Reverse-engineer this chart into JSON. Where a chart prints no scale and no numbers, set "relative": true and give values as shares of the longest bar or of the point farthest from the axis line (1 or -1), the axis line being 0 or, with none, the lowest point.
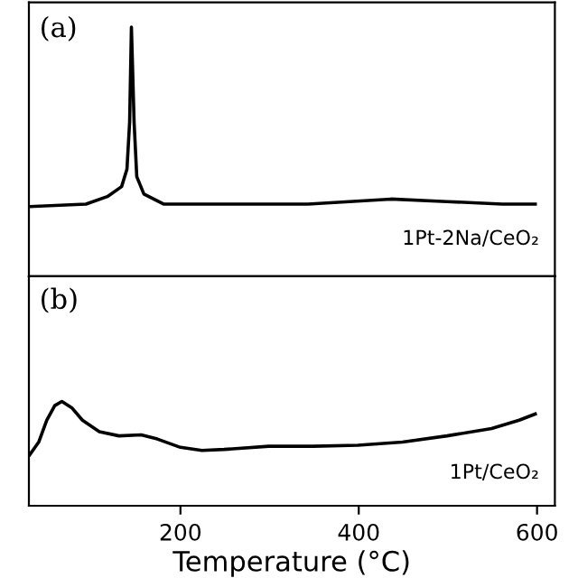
{
  "chart_data": [
    {
      "type": "line",
      "relative": true,
      "tick_labels": false,
      "xlim": [
        30,
        620
      ],
      "annotations": [
        "(a)"
      ],
      "legend": false,
      "grid": false,
      "series": [
        {
          "name": "1Pt-2Na/CeO₂",
          "color": "#000000",
          "x": [
            31,
            94,
            118,
            134,
            140,
            143,
            145,
            148,
            151,
            159,
            181,
            249,
            343,
            436,
            499,
            561,
            598
          ],
          "values": [
            0.28,
            0.29,
            0.32,
            0.36,
            0.43,
            0.62,
            1.0,
            0.62,
            0.4,
            0.33,
            0.29,
            0.29,
            0.29,
            0.31,
            0.3,
            0.29,
            0.29
          ]
        }
      ]
    },
    {
      "type": "line",
      "relative": true,
      "tick_labels": "x",
      "xlim": [
        30,
        620
      ],
      "xticks": [
        200,
        400,
        600
      ],
      "xlabel": "Temperature (°C)",
      "annotations": [
        "(b)"
      ],
      "legend": false,
      "grid": false,
      "series": [
        {
          "name": "1Pt/CeO₂",
          "color": "#000000",
          "x": [
            31,
            41,
            50,
            59,
            67,
            78,
            90,
            109,
            131,
            156,
            174,
            200,
            224,
            249,
            299,
            349,
            399,
            449,
            499,
            549,
            580,
            598
          ],
          "values": [
            0.49,
            0.61,
            0.82,
            0.96,
            1.0,
            0.94,
            0.82,
            0.71,
            0.67,
            0.68,
            0.64,
            0.56,
            0.53,
            0.54,
            0.57,
            0.57,
            0.58,
            0.61,
            0.67,
            0.74,
            0.82,
            0.88
          ]
        }
      ]
    }
  ]
}
